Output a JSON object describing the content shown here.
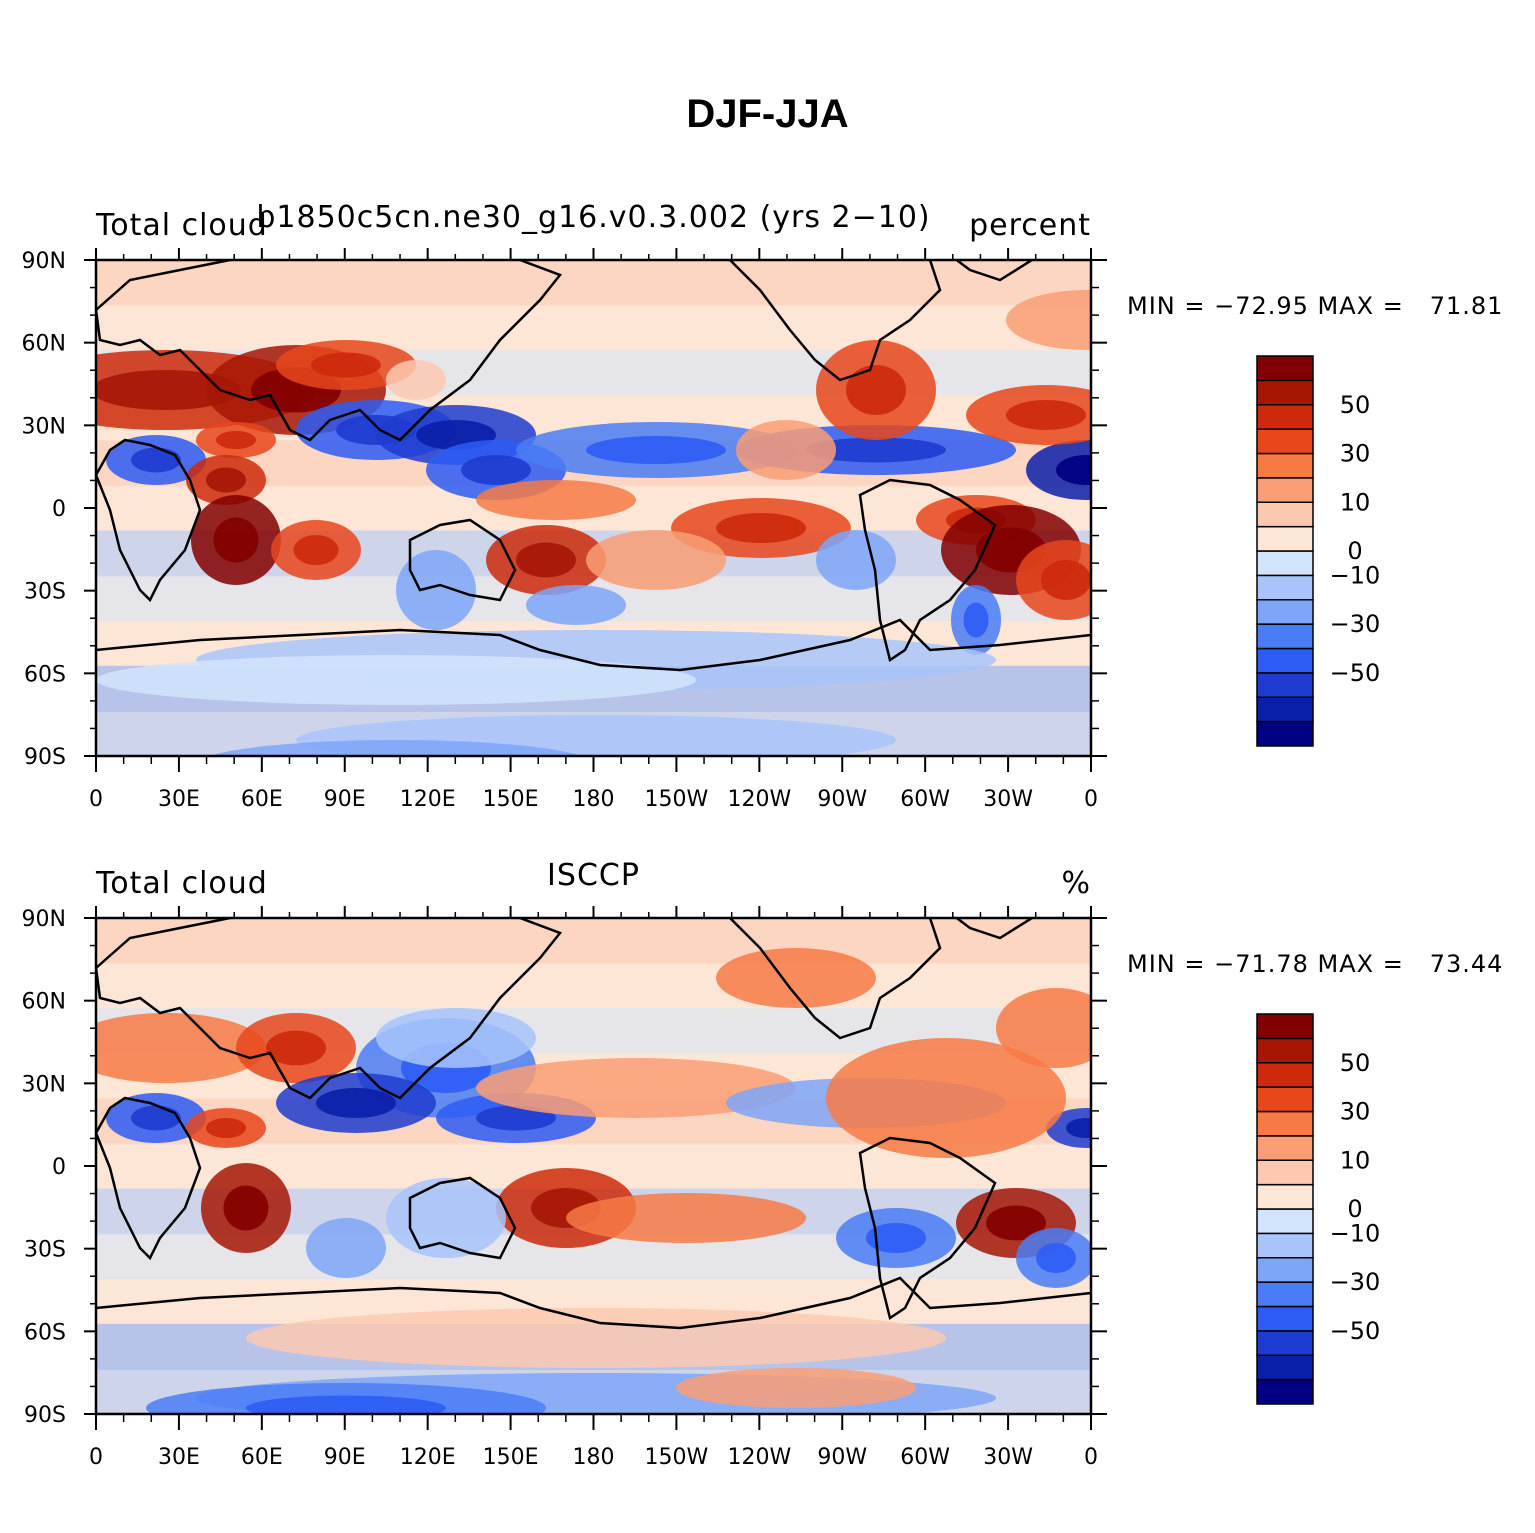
{
  "figure": {
    "title": "DJF-JJA"
  },
  "colorbar": {
    "colors": [
      "#000080",
      "#0a1fa8",
      "#1e3ccf",
      "#2d5cf5",
      "#4a7cf5",
      "#7ea6f8",
      "#a8c4fa",
      "#d2e4fc",
      "#fde6d6",
      "#fcc9b0",
      "#f99d74",
      "#f77a45",
      "#e8471c",
      "#cc2a0b",
      "#a61605",
      "#820000"
    ],
    "labels": [
      {
        "index": 3,
        "text": "−50"
      },
      {
        "index": 5,
        "text": "−30"
      },
      {
        "index": 7,
        "text": "−10"
      },
      {
        "index": 8,
        "text": "0"
      },
      {
        "index": 10,
        "text": "10"
      },
      {
        "index": 12,
        "text": "30"
      },
      {
        "index": 14,
        "text": "50"
      }
    ]
  },
  "axes": {
    "lat_ticks": [
      "90N",
      "60N",
      "30N",
      "0",
      "30S",
      "60S",
      "90S"
    ],
    "lon_ticks": [
      "0",
      "30E",
      "60E",
      "90E",
      "120E",
      "150E",
      "180",
      "150W",
      "120W",
      "90W",
      "60W",
      "30W",
      "0"
    ]
  },
  "panels": [
    {
      "id": "top",
      "left_label": "Total cloud",
      "center_label": "b1850c5cn.ne30_g16.v0.3.002 (yrs 2−10)",
      "right_label": "percent",
      "minmax": "MIN = −72.95 MAX =   71.81"
    },
    {
      "id": "bottom",
      "left_label": "Total cloud",
      "center_label": "ISCCP",
      "right_label": "%",
      "minmax": "MIN = −71.78 MAX =   73.44"
    }
  ]
}
